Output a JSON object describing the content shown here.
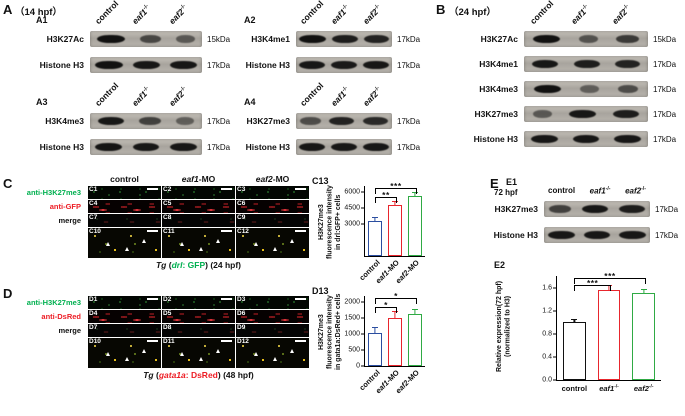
{
  "genotypes": [
    {
      "text": "control"
    },
    {
      "text": "eaf1",
      "italic": true,
      "sup": "-/-"
    },
    {
      "text": "eaf2",
      "italic": true,
      "sup": "-/-"
    }
  ],
  "morpholinos": [
    {
      "text": "control"
    },
    {
      "text": "eaf1",
      "italic": true,
      "suffix": "-MO"
    },
    {
      "text": "eaf2",
      "italic": true,
      "suffix": "-MO"
    }
  ],
  "A": {
    "label": "A",
    "stage": "（14 hpf）",
    "blots": [
      {
        "id": "A1",
        "rows": [
          {
            "protein": "H3K27Ac",
            "kda": "15kDa",
            "bands": [
              0.95,
              0.5,
              0.35
            ]
          },
          {
            "protein": "Histone H3",
            "kda": "17kDa",
            "bands": [
              0.95,
              0.9,
              0.9
            ]
          }
        ]
      },
      {
        "id": "A2",
        "rows": [
          {
            "protein": "H3K4me1",
            "kda": "17kDa",
            "bands": [
              0.95,
              0.85,
              0.8
            ]
          },
          {
            "protein": "Histone H3",
            "kda": "17kDa",
            "bands": [
              0.9,
              0.88,
              0.9
            ]
          }
        ]
      },
      {
        "id": "A3",
        "rows": [
          {
            "protein": "H3K4me3",
            "kda": "17kDa",
            "bands": [
              0.9,
              0.55,
              0.3
            ]
          },
          {
            "protein": "Histone H3",
            "kda": "17kDa",
            "bands": [
              0.92,
              0.9,
              0.9
            ]
          }
        ]
      },
      {
        "id": "A4",
        "rows": [
          {
            "protein": "H3K27me3",
            "kda": "17kDa",
            "bands": [
              0.45,
              0.8,
              0.75
            ]
          },
          {
            "protein": "Histone H3",
            "kda": "17kDa",
            "bands": [
              0.9,
              0.9,
              0.9
            ]
          }
        ]
      }
    ]
  },
  "B": {
    "label": "B",
    "stage": "（24 hpf）",
    "blot": {
      "rows": [
        {
          "protein": "H3K27Ac",
          "kda": "15kDa",
          "bands": [
            0.95,
            0.4,
            0.6
          ]
        },
        {
          "protein": "H3K4me1",
          "kda": "17kDa",
          "bands": [
            0.9,
            0.85,
            0.8
          ]
        },
        {
          "protein": "H3K4me3",
          "kda": "17kDa",
          "bands": [
            0.95,
            0.3,
            0.45
          ]
        },
        {
          "protein": "H3K27me3",
          "kda": "17kDa",
          "bands": [
            0.35,
            0.9,
            0.85
          ]
        },
        {
          "protein": "Histone H3",
          "kda": "17kDa",
          "bands": [
            0.9,
            0.9,
            0.9
          ]
        }
      ]
    }
  },
  "C": {
    "label": "C",
    "chart_label": "C13",
    "row_labels": [
      {
        "text": "anti-H3K27me3",
        "color": "#00b050"
      },
      {
        "text": "anti-GFP",
        "color": "#ed1c24"
      },
      {
        "text": "merge",
        "color": "#111111"
      }
    ],
    "cells": [
      "C1",
      "C2",
      "C3",
      "C4",
      "C5",
      "C6",
      "C7",
      "C8",
      "C9",
      "C10",
      "C11",
      "C12"
    ],
    "caption": [
      {
        "text": "Tg ",
        "italic": true
      },
      {
        "text": "("
      },
      {
        "text": "drl",
        "italic": true,
        "color": "#00b050"
      },
      {
        "text": ": GFP",
        "color": "#00b050"
      },
      {
        "text": ") (24 hpf)"
      }
    ]
  },
  "D": {
    "label": "D",
    "chart_label": "D13",
    "row_labels": [
      {
        "text": "anti-H3K27me3",
        "color": "#00b050"
      },
      {
        "text": "anti-DsRed",
        "color": "#ed1c24"
      },
      {
        "text": "merge",
        "color": "#111111"
      }
    ],
    "cells": [
      "D1",
      "D2",
      "D3",
      "D4",
      "D5",
      "D6",
      "D7",
      "D8",
      "D9",
      "D10",
      "D11",
      "D12"
    ],
    "caption": [
      {
        "text": "Tg ",
        "italic": true
      },
      {
        "text": "("
      },
      {
        "text": "gata1a",
        "italic": true,
        "color": "#ed1c24"
      },
      {
        "text": ": DsRed",
        "color": "#ed1c24"
      },
      {
        "text": ") (48 hpf)"
      }
    ]
  },
  "E": {
    "label": "E",
    "sub1": "E1",
    "sub2": "E2",
    "time": "72 hpf",
    "blot": {
      "rows": [
        {
          "protein": "H3K27me3",
          "kda": "17kDa",
          "bands": [
            0.55,
            0.9,
            0.85
          ]
        },
        {
          "protein": "Histone H3",
          "kda": "17kDa",
          "bands": [
            0.9,
            0.9,
            0.9
          ]
        }
      ]
    }
  },
  "chart_data": {
    "C13": {
      "type": "bar",
      "ylabel": "H3K27me3 fluorescence intensity in drl:GFP+ cells",
      "categories": [
        {
          "text": "control"
        },
        {
          "text": "eaf1",
          "italic": true,
          "suffix": "-MO"
        },
        {
          "text": "eaf2",
          "italic": true,
          "suffix": "-MO"
        }
      ],
      "values": [
        3300,
        4800,
        5700
      ],
      "errors": [
        300,
        280,
        220
      ],
      "bar_colors": [
        "#2b4ea0",
        "#e8262d",
        "#2faa44"
      ],
      "ylim": [
        0,
        6600
      ],
      "yticks": [
        3000,
        4500,
        6000
      ],
      "ytick_labels": [
        "3000",
        "4500",
        "6000"
      ],
      "annotations": [
        {
          "pair": [
            0,
            2
          ],
          "label": "***",
          "top": 3
        },
        {
          "pair": [
            0,
            1
          ],
          "label": "**",
          "top": 15
        }
      ]
    },
    "D13": {
      "type": "bar",
      "ylabel": "H3K27me3 fluorescence intensity in gata1a:DsRed+ cells",
      "categories": [
        {
          "text": "control"
        },
        {
          "text": "eaf1",
          "italic": true,
          "suffix": "-MO"
        },
        {
          "text": "eaf2",
          "italic": true,
          "suffix": "-MO"
        }
      ],
      "values": [
        1050,
        1500,
        1620
      ],
      "errors": [
        130,
        190,
        140
      ],
      "bar_colors": [
        "#2b4ea0",
        "#e8262d",
        "#2faa44"
      ],
      "ylim": [
        0,
        2200
      ],
      "yticks": [
        0,
        500,
        1000,
        1500,
        2000
      ],
      "ytick_labels": [
        "0",
        "500",
        "1000",
        "1500",
        "2000"
      ],
      "annotations": [
        {
          "pair": [
            0,
            2
          ],
          "label": "*",
          "top": 3
        },
        {
          "pair": [
            0,
            1
          ],
          "label": "*",
          "top": 15
        }
      ]
    },
    "E2": {
      "type": "bar",
      "ylabel": "Relative expression(72 hpf) (normalized to H3)",
      "categories": [
        {
          "text": "control"
        },
        {
          "text": "eaf1",
          "italic": true,
          "sup": "-/-"
        },
        {
          "text": "eaf2",
          "italic": true,
          "sup": "-/-"
        }
      ],
      "values": [
        1.0,
        1.55,
        1.5
      ],
      "errors": [
        0.04,
        0.07,
        0.06
      ],
      "bar_colors": [
        "#111111",
        "#e8262d",
        "#2faa44"
      ],
      "ylim": [
        0,
        1.8
      ],
      "yticks": [
        0,
        0.4,
        0.8,
        1.2,
        1.6
      ],
      "ytick_labels": [
        "0.0",
        "0.4",
        "0.8",
        "1.2",
        "1.6"
      ],
      "annotations": [
        {
          "pair": [
            0,
            2
          ],
          "label": "***",
          "top": 2
        },
        {
          "pair": [
            0,
            1
          ],
          "label": "***",
          "top": 9
        }
      ]
    }
  }
}
